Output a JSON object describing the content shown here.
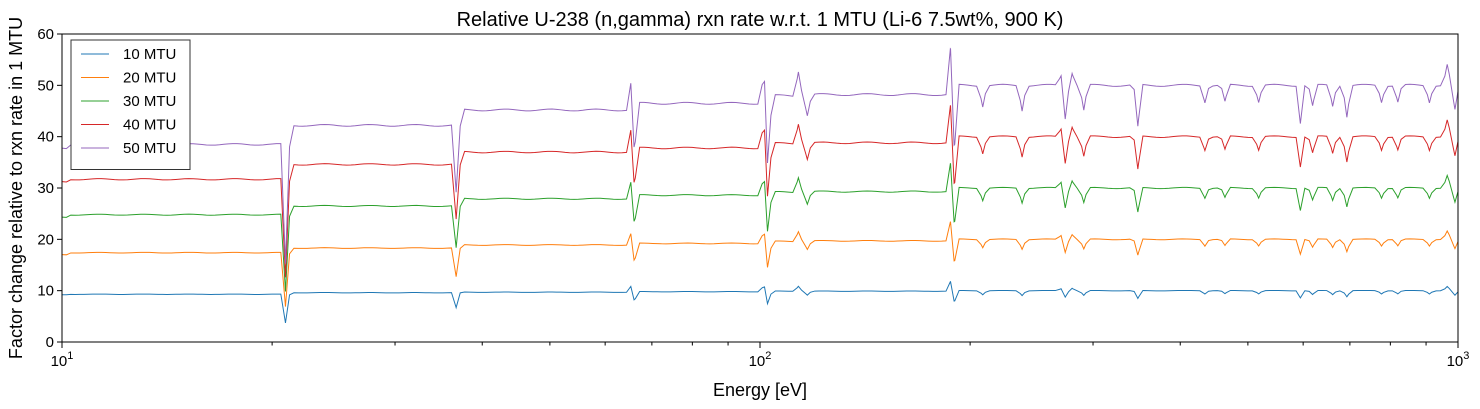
{
  "chart_data": {
    "type": "line",
    "title": "Relative U-238 (n,gamma) rxn rate w.r.t. 1 MTU (Li-6 7.5wt%, 900 K)",
    "xlabel": "Energy [eV]",
    "ylabel": "Factor change relative to rxn rate in 1 MTU",
    "xscale": "log",
    "xlim": [
      10,
      1000
    ],
    "ylim": [
      0,
      60
    ],
    "yticks": [
      "0",
      "10",
      "20",
      "30",
      "40",
      "50",
      "60"
    ],
    "xticks": [
      {
        "base": "10",
        "exp": "1"
      },
      {
        "base": "10",
        "exp": "2"
      },
      {
        "base": "10",
        "exp": "3"
      }
    ],
    "grid": false,
    "legend_position": "upper-left",
    "base_energies": [
      10,
      20.9,
      36.7,
      66.0,
      102.5,
      116.9,
      189.7,
      1000
    ],
    "dips": [
      {
        "e": 20.9,
        "depth": 0.8
      },
      {
        "e": 36.7,
        "depth": 0.4
      },
      {
        "e": 66.0,
        "depth": 0.25
      },
      {
        "e": 102.5,
        "depth": 0.38
      },
      {
        "e": 116.9,
        "depth": 0.1
      },
      {
        "e": 189.7,
        "depth": 0.3
      },
      {
        "e": 208.5,
        "depth": 0.1
      },
      {
        "e": 237.4,
        "depth": 0.12
      },
      {
        "e": 273.7,
        "depth": 0.16
      },
      {
        "e": 291.0,
        "depth": 0.12
      },
      {
        "e": 347.8,
        "depth": 0.2
      },
      {
        "e": 433.9,
        "depth": 0.08
      },
      {
        "e": 463.6,
        "depth": 0.08
      },
      {
        "e": 518.1,
        "depth": 0.08
      },
      {
        "e": 594.5,
        "depth": 0.18
      },
      {
        "e": 619.0,
        "depth": 0.1
      },
      {
        "e": 661.3,
        "depth": 0.1
      },
      {
        "e": 693.1,
        "depth": 0.15
      },
      {
        "e": 777.0,
        "depth": 0.08
      },
      {
        "e": 820.0,
        "depth": 0.08
      },
      {
        "e": 910.0,
        "depth": 0.08
      },
      {
        "e": 990.0,
        "depth": 0.12
      }
    ],
    "peaks": [
      {
        "e": 65.3,
        "height": 0.16
      },
      {
        "e": 101.5,
        "height": 0.18
      },
      {
        "e": 113.5,
        "height": 0.1
      },
      {
        "e": 187.5,
        "height": 0.22
      },
      {
        "e": 270.0,
        "height": 0.04
      },
      {
        "e": 280.0,
        "height": 0.05
      },
      {
        "e": 965.0,
        "height": 0.08
      }
    ],
    "series": [
      {
        "name": "10 MTU",
        "color": "#1f77b4",
        "levels": [
          9.2,
          9.3,
          9.6,
          9.7,
          9.8,
          9.9,
          9.9,
          10.0
        ]
      },
      {
        "name": "20 MTU",
        "color": "#ff7f0e",
        "levels": [
          17.0,
          17.4,
          18.3,
          18.9,
          19.2,
          19.6,
          19.7,
          20.0
        ]
      },
      {
        "name": "30 MTU",
        "color": "#2ca02c",
        "levels": [
          24.3,
          24.8,
          26.5,
          27.9,
          28.6,
          29.2,
          29.3,
          30.0
        ]
      },
      {
        "name": "40 MTU",
        "color": "#d62728",
        "levels": [
          31.2,
          31.7,
          34.6,
          37.0,
          37.8,
          38.7,
          38.8,
          40.0
        ]
      },
      {
        "name": "50 MTU",
        "color": "#9467bd",
        "levels": [
          37.7,
          38.5,
          42.2,
          45.2,
          46.5,
          48.0,
          48.2,
          50.0
        ]
      }
    ]
  }
}
